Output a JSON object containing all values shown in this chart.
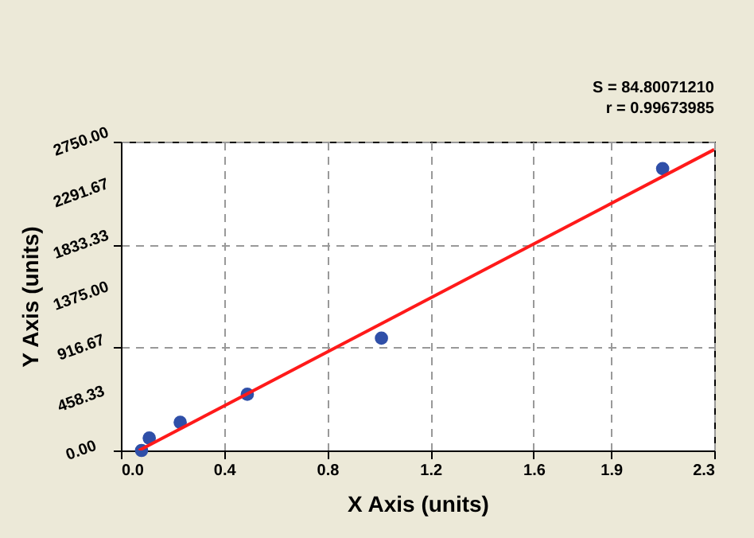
{
  "chart_data": {
    "type": "scatter",
    "xlabel": "X Axis (units)",
    "ylabel": "Y Axis (units)",
    "annotations": [
      "S = 84.80071210",
      "r = 0.99673985"
    ],
    "series": [
      {
        "color": "#2f4fa8",
        "x": [
          0.08,
          0.11,
          0.23,
          0.49,
          1.01,
          2.1
        ],
        "values": [
          0,
          110,
          250,
          500,
          1000,
          2510
        ],
        "marker": "circle"
      },
      {
        "type": "line",
        "color": "#ff1a1a",
        "x": [
          0.07,
          2.3
        ],
        "values": [
          0,
          2680
        ],
        "marker": "none",
        "line_style": "solid"
      }
    ],
    "xlim": [
      0,
      2.3
    ],
    "xticks": [
      {
        "value": 0,
        "label": "0.0"
      },
      0.4,
      0.8,
      1.2,
      1.6,
      1.9,
      2.3
    ],
    "ylim": [
      0,
      2750
    ],
    "yticks": [
      {
        "value": 0,
        "label": "0.00"
      },
      458.33,
      916.67,
      {
        "value": 1375,
        "label": "1375.00"
      },
      1833.33,
      2291.67,
      {
        "value": 2750,
        "label": "2750.00"
      }
    ],
    "grid": true
  }
}
